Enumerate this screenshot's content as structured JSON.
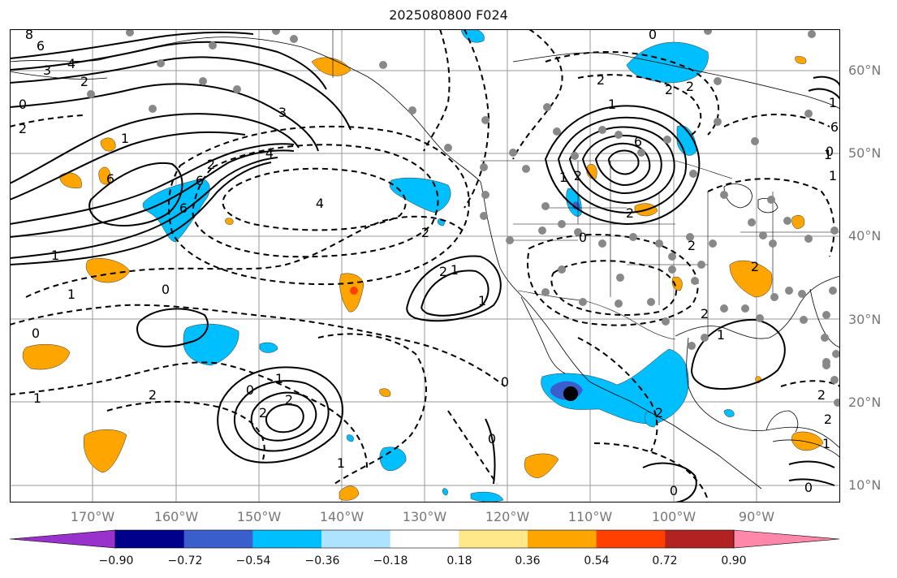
{
  "title": "2025080800 F024",
  "latitude_labels": [
    "60°N",
    "50°N",
    "40°N",
    "30°N",
    "20°N",
    "10°N"
  ],
  "longitude_labels": [
    "170°W",
    "160°W",
    "150°W",
    "140°W",
    "130°W",
    "120°W",
    "110°W",
    "100°W",
    "90°W"
  ],
  "colorbar": {
    "colors": [
      "#9932cc",
      "#00008b",
      "#3a5fcd",
      "#00bfff",
      "#aee3ff",
      "#ffffff",
      "#ffe88a",
      "#ffa500",
      "#ff4000",
      "#b22222",
      "#ff88aa"
    ],
    "labels": [
      "−0.90",
      "−0.72",
      "−0.54",
      "−0.36",
      "−0.18",
      "0.18",
      "0.36",
      "0.54",
      "0.72",
      "0.90"
    ]
  },
  "contour_labels": [
    "8",
    "6",
    "3",
    "4",
    "2",
    "0",
    "2",
    "3",
    "4",
    "6",
    "6",
    "1",
    "2",
    "6",
    "1",
    "1",
    "2",
    "4",
    "1",
    "2",
    "0",
    "1",
    "0",
    "2",
    "1",
    "0",
    "2",
    "1",
    "2",
    "1",
    "2",
    "2",
    "0",
    "1",
    "0",
    "0",
    "2",
    "1",
    "2",
    "2",
    "6",
    "2",
    "0",
    "2",
    "2",
    "1",
    "0",
    "2",
    "1",
    "1",
    "1",
    "0",
    "2",
    "2",
    "1",
    "0",
    "6"
  ]
}
